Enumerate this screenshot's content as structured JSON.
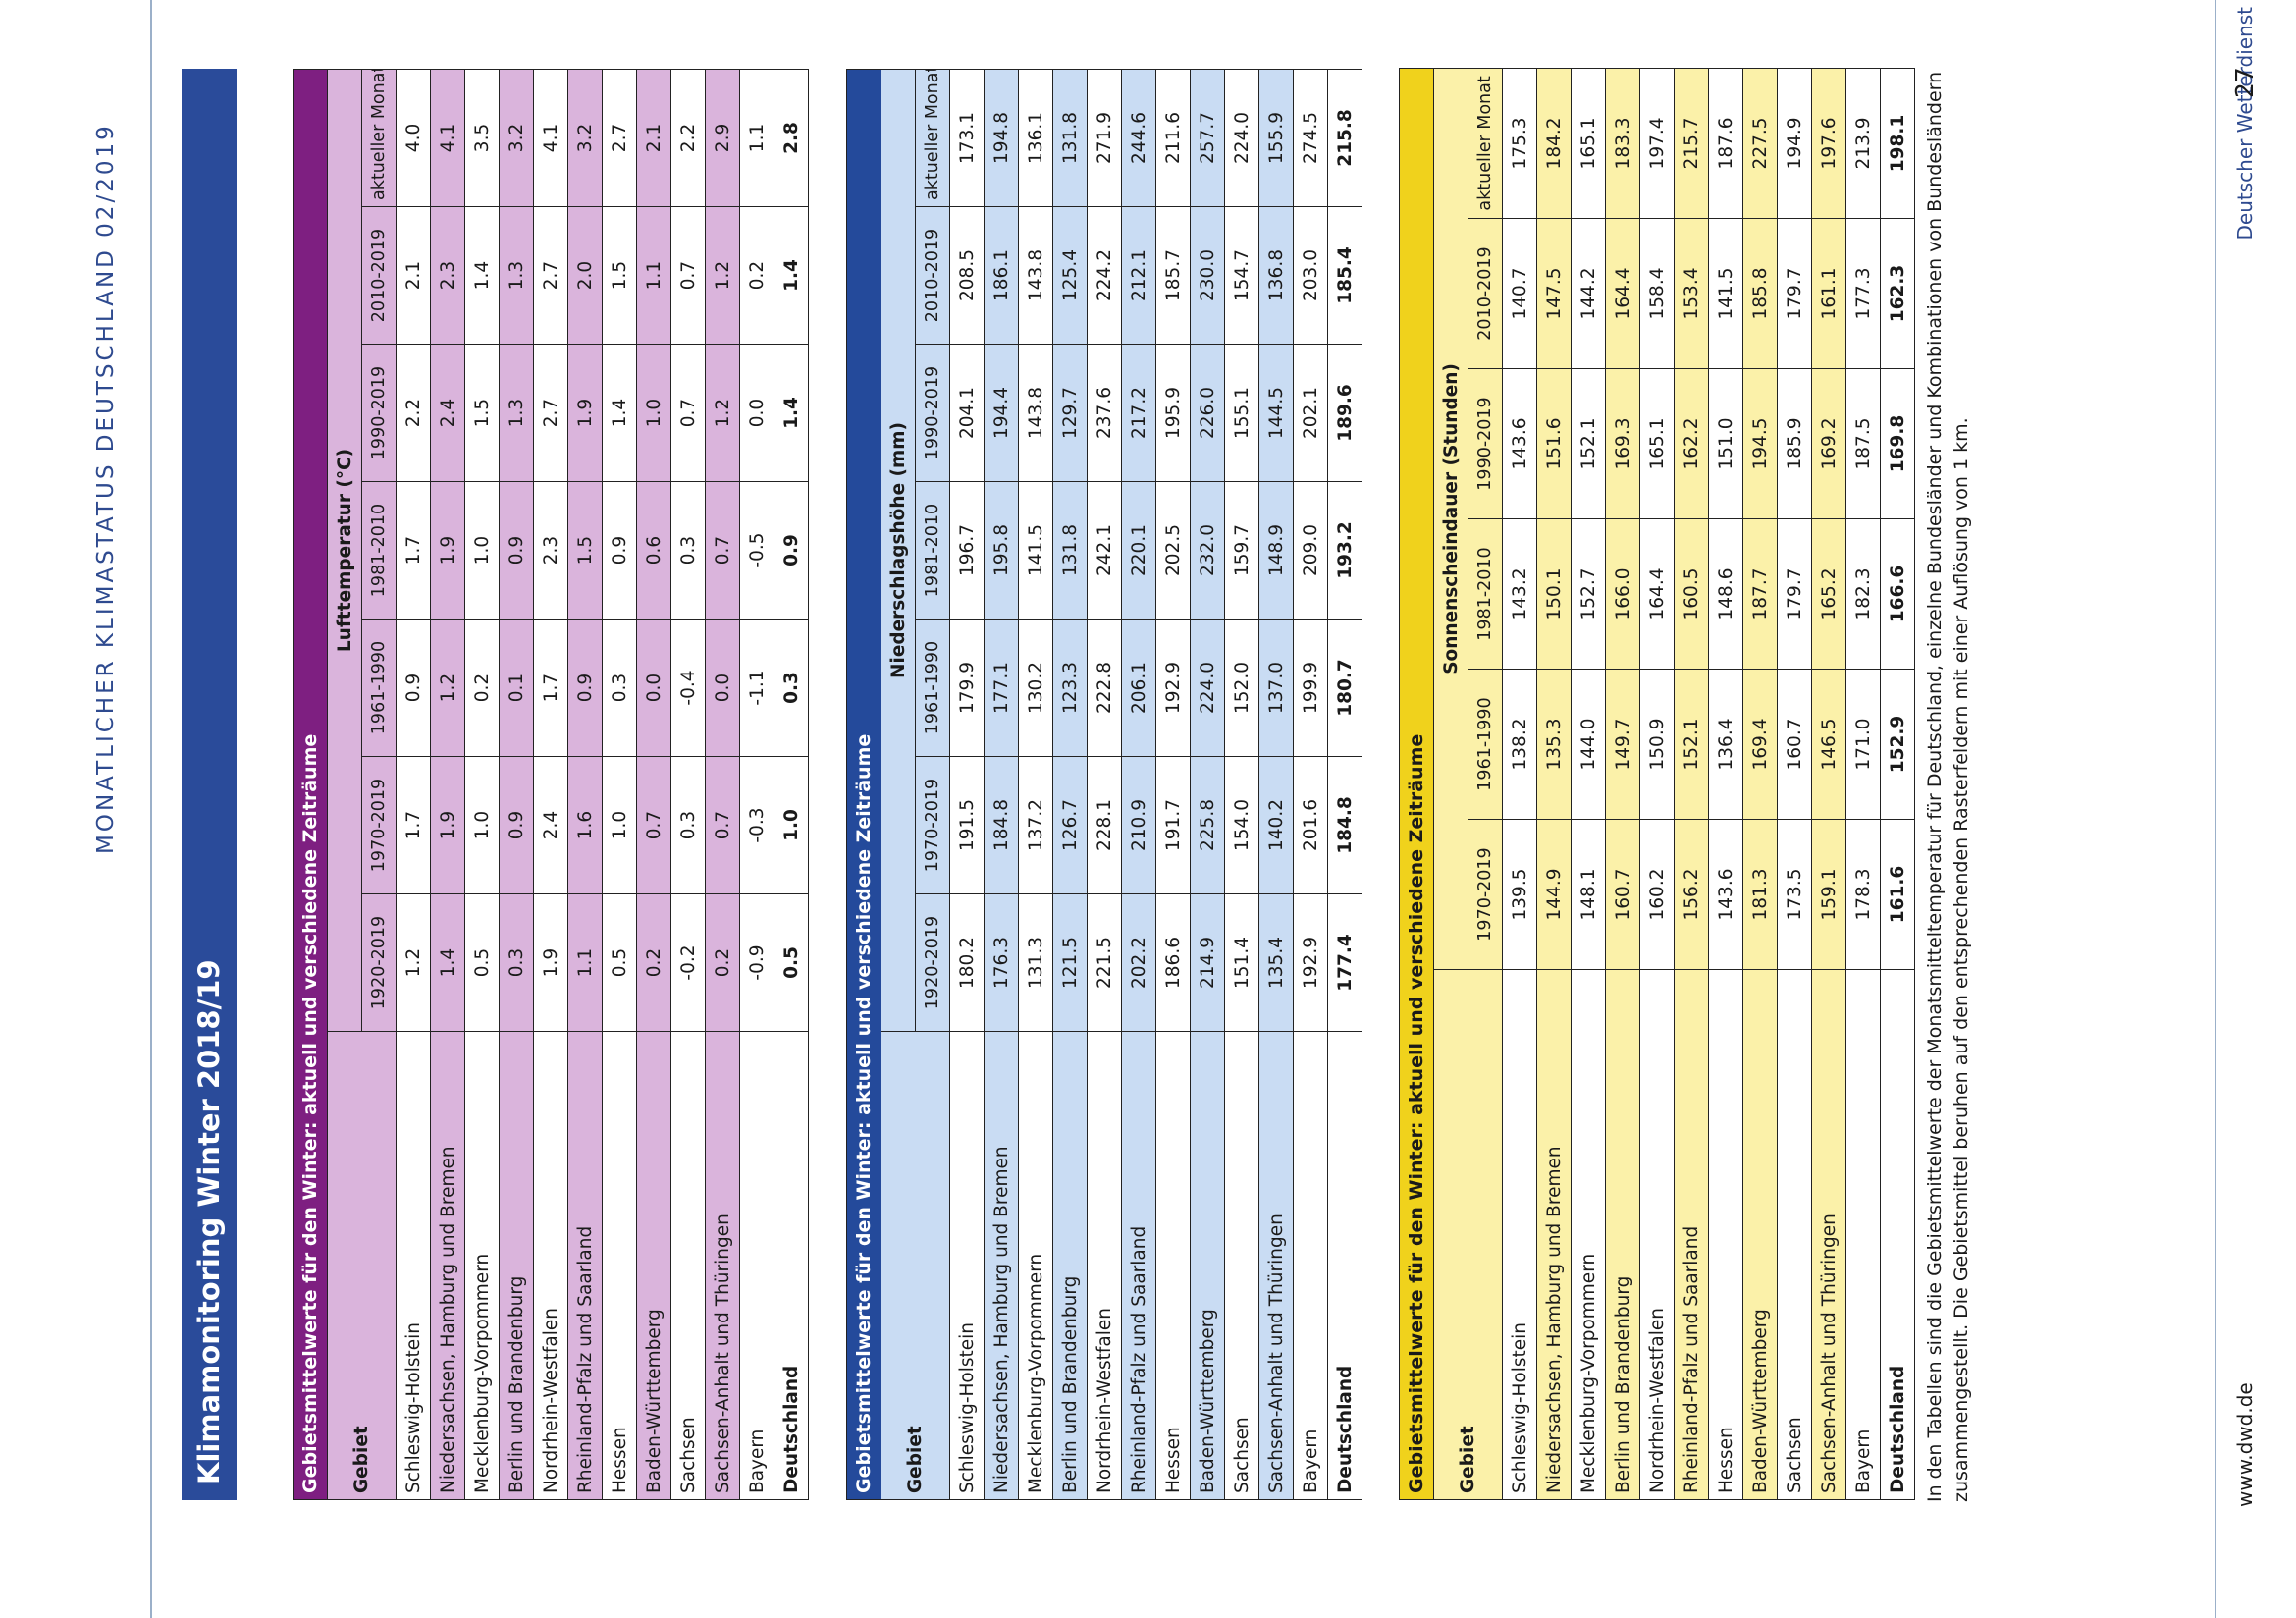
{
  "page": {
    "running_header": "MONATLICHER KLIMASTATUS DEUTSCHLAND 02/2019",
    "title": "Klimamonitoring Winter 2018/19",
    "footer_left": "www.dwd.de",
    "footer_right": "Deutscher Wetterdienst",
    "page_number": "27",
    "footnote": "In den Tabellen sind die Gebietsmittelwerte der Monatsmitteltemperatur für Deutschland, einzelne Bundesländer und Kombinationen von Bundesländern zusammengestellt. Die Gebietsmittel beruhen auf den entsprechenden Rasterfeldern mit einer Auflösung von 1 km."
  },
  "tables": [
    {
      "id": "lufttemperatur",
      "caption": "Gebietsmittelwerte für den Winter: aktuell und verschiedene Zeiträume",
      "gebiet_label": "Gebiet",
      "group_label": "Lufttemperatur (°C)",
      "periods": [
        "1920-2019",
        "1970-2019",
        "1961-1990",
        "1981-2010",
        "1990-2019",
        "2010-2019",
        "aktueller Monat"
      ],
      "rows": [
        {
          "name": "Schleswig-Holstein",
          "values": [
            "1.2",
            "1.7",
            "0.9",
            "1.7",
            "2.2",
            "2.1",
            "4.0"
          ]
        },
        {
          "name": "Niedersachsen, Hamburg und Bremen",
          "values": [
            "1.4",
            "1.9",
            "1.2",
            "1.9",
            "2.4",
            "2.3",
            "4.1"
          ]
        },
        {
          "name": "Mecklenburg-Vorpommern",
          "values": [
            "0.5",
            "1.0",
            "0.2",
            "1.0",
            "1.5",
            "1.4",
            "3.5"
          ]
        },
        {
          "name": "Berlin und Brandenburg",
          "values": [
            "0.3",
            "0.9",
            "0.1",
            "0.9",
            "1.3",
            "1.3",
            "3.2"
          ]
        },
        {
          "name": "Nordrhein-Westfalen",
          "values": [
            "1.9",
            "2.4",
            "1.7",
            "2.3",
            "2.7",
            "2.7",
            "4.1"
          ]
        },
        {
          "name": "Rheinland-Pfalz und Saarland",
          "values": [
            "1.1",
            "1.6",
            "0.9",
            "1.5",
            "1.9",
            "2.0",
            "3.2"
          ]
        },
        {
          "name": "Hessen",
          "values": [
            "0.5",
            "1.0",
            "0.3",
            "0.9",
            "1.4",
            "1.5",
            "2.7"
          ]
        },
        {
          "name": "Baden-Württemberg",
          "values": [
            "0.2",
            "0.7",
            "0.0",
            "0.6",
            "1.0",
            "1.1",
            "2.1"
          ]
        },
        {
          "name": "Sachsen",
          "values": [
            "-0.2",
            "0.3",
            "-0.4",
            "0.3",
            "0.7",
            "0.7",
            "2.2"
          ]
        },
        {
          "name": "Sachsen-Anhalt und Thüringen",
          "values": [
            "0.2",
            "0.7",
            "0.0",
            "0.7",
            "1.2",
            "1.2",
            "2.9"
          ]
        },
        {
          "name": "Bayern",
          "values": [
            "-0.9",
            "-0.3",
            "-1.1",
            "-0.5",
            "0.0",
            "0.2",
            "1.1"
          ]
        },
        {
          "name": "Deutschland",
          "values": [
            "0.5",
            "1.0",
            "0.3",
            "0.9",
            "1.4",
            "1.4",
            "2.8"
          ]
        }
      ]
    },
    {
      "id": "niederschlag",
      "caption": "Gebietsmittelwerte für den Winter: aktuell und verschiedene Zeiträume",
      "gebiet_label": "Gebiet",
      "group_label": "Niederschlagshöhe (mm)",
      "periods": [
        "1920-2019",
        "1970-2019",
        "1961-1990",
        "1981-2010",
        "1990-2019",
        "2010-2019",
        "aktueller Monat"
      ],
      "rows": [
        {
          "name": "Schleswig-Holstein",
          "values": [
            "180.2",
            "191.5",
            "179.9",
            "196.7",
            "204.1",
            "208.5",
            "173.1"
          ]
        },
        {
          "name": "Niedersachsen, Hamburg und Bremen",
          "values": [
            "176.3",
            "184.8",
            "177.1",
            "195.8",
            "194.4",
            "186.1",
            "194.8"
          ]
        },
        {
          "name": "Mecklenburg-Vorpommern",
          "values": [
            "131.3",
            "137.2",
            "130.2",
            "141.5",
            "143.8",
            "143.8",
            "136.1"
          ]
        },
        {
          "name": "Berlin und Brandenburg",
          "values": [
            "121.5",
            "126.7",
            "123.3",
            "131.8",
            "129.7",
            "125.4",
            "131.8"
          ]
        },
        {
          "name": "Nordrhein-Westfalen",
          "values": [
            "221.5",
            "228.1",
            "222.8",
            "242.1",
            "237.6",
            "224.2",
            "271.9"
          ]
        },
        {
          "name": "Rheinland-Pfalz und Saarland",
          "values": [
            "202.2",
            "210.9",
            "206.1",
            "220.1",
            "217.2",
            "212.1",
            "244.6"
          ]
        },
        {
          "name": "Hessen",
          "values": [
            "186.6",
            "191.7",
            "192.9",
            "202.5",
            "195.9",
            "185.7",
            "211.6"
          ]
        },
        {
          "name": "Baden-Württemberg",
          "values": [
            "214.9",
            "225.8",
            "224.0",
            "232.0",
            "226.0",
            "230.0",
            "257.7"
          ]
        },
        {
          "name": "Sachsen",
          "values": [
            "151.4",
            "154.0",
            "152.0",
            "159.7",
            "155.1",
            "154.7",
            "224.0"
          ]
        },
        {
          "name": "Sachsen-Anhalt und Thüringen",
          "values": [
            "135.4",
            "140.2",
            "137.0",
            "148.9",
            "144.5",
            "136.8",
            "155.9"
          ]
        },
        {
          "name": "Bayern",
          "values": [
            "192.9",
            "201.6",
            "199.9",
            "209.0",
            "202.1",
            "203.0",
            "274.5"
          ]
        },
        {
          "name": "Deutschland",
          "values": [
            "177.4",
            "184.8",
            "180.7",
            "193.2",
            "189.6",
            "185.4",
            "215.8"
          ]
        }
      ]
    },
    {
      "id": "sonnenschein",
      "caption": "Gebietsmittelwerte für den Winter: aktuell und verschiedene Zeiträume",
      "gebiet_label": "Gebiet",
      "group_label": "Sonnenscheindauer (Stunden)",
      "periods": [
        "1970-2019",
        "1961-1990",
        "1981-2010",
        "1990-2019",
        "2010-2019",
        "aktueller Monat"
      ],
      "rows": [
        {
          "name": "Schleswig-Holstein",
          "values": [
            "139.5",
            "138.2",
            "143.2",
            "143.6",
            "140.7",
            "175.3"
          ]
        },
        {
          "name": "Niedersachsen, Hamburg und Bremen",
          "values": [
            "144.9",
            "135.3",
            "150.1",
            "151.6",
            "147.5",
            "184.2"
          ]
        },
        {
          "name": "Mecklenburg-Vorpommern",
          "values": [
            "148.1",
            "144.0",
            "152.7",
            "152.1",
            "144.2",
            "165.1"
          ]
        },
        {
          "name": "Berlin und Brandenburg",
          "values": [
            "160.7",
            "149.7",
            "166.0",
            "169.3",
            "164.4",
            "183.3"
          ]
        },
        {
          "name": "Nordrhein-Westfalen",
          "values": [
            "160.2",
            "150.9",
            "164.4",
            "165.1",
            "158.4",
            "197.4"
          ]
        },
        {
          "name": "Rheinland-Pfalz und Saarland",
          "values": [
            "156.2",
            "152.1",
            "160.5",
            "162.2",
            "153.4",
            "215.7"
          ]
        },
        {
          "name": "Hessen",
          "values": [
            "143.6",
            "136.4",
            "148.6",
            "151.0",
            "141.5",
            "187.6"
          ]
        },
        {
          "name": "Baden-Württemberg",
          "values": [
            "181.3",
            "169.4",
            "187.7",
            "194.5",
            "185.8",
            "227.5"
          ]
        },
        {
          "name": "Sachsen",
          "values": [
            "173.5",
            "160.7",
            "179.7",
            "185.9",
            "179.7",
            "194.9"
          ]
        },
        {
          "name": "Sachsen-Anhalt und Thüringen",
          "values": [
            "159.1",
            "146.5",
            "165.2",
            "169.2",
            "161.1",
            "197.6"
          ]
        },
        {
          "name": "Bayern",
          "values": [
            "178.3",
            "171.0",
            "182.3",
            "187.5",
            "177.3",
            "213.9"
          ]
        },
        {
          "name": "Deutschland",
          "values": [
            "161.6",
            "152.9",
            "166.6",
            "169.8",
            "162.3",
            "198.1"
          ]
        }
      ]
    }
  ]
}
